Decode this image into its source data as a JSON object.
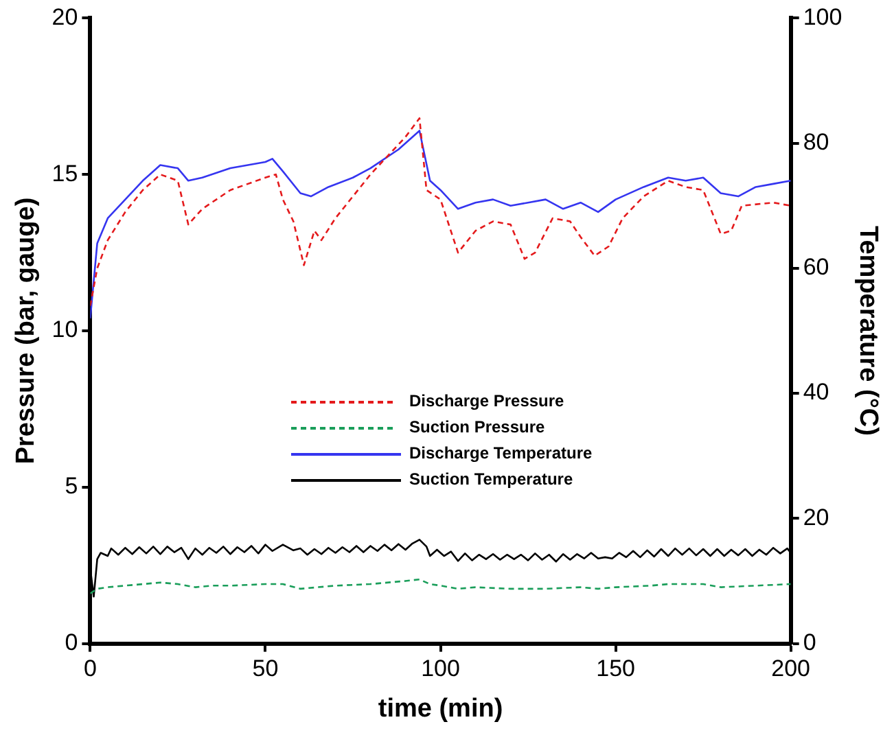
{
  "chart_data": {
    "type": "line",
    "xlabel": "time (min)",
    "ylabel": "Pressure (bar, gauge)",
    "y2label": "Temperature (°C)",
    "xlim": [
      0,
      200
    ],
    "xticks": [
      0,
      50,
      100,
      150,
      200
    ],
    "ylim": [
      0,
      20
    ],
    "yticks": [
      0,
      5,
      10,
      15,
      20
    ],
    "y2lim": [
      0,
      100
    ],
    "y2ticks": [
      0,
      20,
      40,
      60,
      80,
      100
    ],
    "legend": "center",
    "grid": false,
    "marker": "none",
    "series": [
      {
        "name": "Discharge Pressure",
        "color": "#e41a1c",
        "line_style": "dashed",
        "axis": "y",
        "x": [
          0,
          2,
          5,
          10,
          15,
          20,
          25,
          28,
          32,
          40,
          50,
          53,
          55,
          58,
          61,
          64,
          66,
          70,
          80,
          90,
          94,
          96,
          100,
          105,
          110,
          115,
          120,
          124,
          127,
          132,
          137,
          140,
          144,
          148,
          152,
          158,
          165,
          170,
          175,
          180,
          183,
          186,
          195,
          200
        ],
        "values": [
          10.8,
          12.0,
          12.9,
          13.8,
          14.5,
          15.0,
          14.8,
          13.4,
          13.9,
          14.5,
          14.9,
          15.0,
          14.2,
          13.5,
          12.1,
          13.2,
          12.9,
          13.6,
          15.0,
          16.2,
          16.8,
          14.5,
          14.2,
          12.5,
          13.2,
          13.5,
          13.4,
          12.3,
          12.5,
          13.6,
          13.5,
          13.0,
          12.4,
          12.7,
          13.6,
          14.3,
          14.8,
          14.6,
          14.5,
          13.1,
          13.2,
          14.0,
          14.1,
          14.0
        ]
      },
      {
        "name": "Suction Pressure",
        "color": "#1a9e5a",
        "line_style": "dashed",
        "axis": "y",
        "x": [
          0,
          2,
          5,
          10,
          15,
          20,
          25,
          30,
          35,
          40,
          50,
          55,
          60,
          65,
          70,
          80,
          90,
          94,
          97,
          100,
          105,
          110,
          120,
          130,
          140,
          145,
          150,
          160,
          165,
          175,
          180,
          190,
          200
        ],
        "values": [
          1.6,
          1.75,
          1.8,
          1.85,
          1.9,
          1.95,
          1.9,
          1.8,
          1.85,
          1.85,
          1.9,
          1.9,
          1.75,
          1.8,
          1.85,
          1.9,
          2.0,
          2.05,
          1.9,
          1.85,
          1.75,
          1.8,
          1.75,
          1.75,
          1.8,
          1.75,
          1.8,
          1.85,
          1.9,
          1.9,
          1.8,
          1.85,
          1.9
        ]
      },
      {
        "name": "Discharge Temperature",
        "color": "#3535f0",
        "line_style": "solid",
        "axis": "y2",
        "x": [
          0,
          1,
          2,
          5,
          10,
          15,
          20,
          25,
          28,
          32,
          40,
          50,
          52,
          55,
          60,
          63,
          68,
          75,
          80,
          88,
          94,
          97,
          100,
          105,
          110,
          115,
          120,
          125,
          130,
          135,
          140,
          145,
          150,
          158,
          165,
          170,
          175,
          180,
          185,
          190,
          195,
          200
        ],
        "values": [
          52,
          58,
          64,
          68,
          71,
          74,
          76.5,
          76,
          74,
          74.5,
          76,
          77,
          77.5,
          75.5,
          72,
          71.5,
          73,
          74.5,
          76,
          79,
          82,
          74,
          72.5,
          69.5,
          70.5,
          71,
          70,
          70.5,
          71,
          69.5,
          70.5,
          69,
          71,
          73,
          74.5,
          74,
          74.5,
          72,
          71.5,
          73,
          73.5,
          74
        ]
      },
      {
        "name": "Suction Temperature",
        "color": "#000000",
        "line_style": "solid",
        "axis": "y2",
        "x": [
          0,
          1,
          2,
          3,
          5,
          6,
          8,
          10,
          12,
          14,
          16,
          18,
          20,
          22,
          24,
          26,
          28,
          30,
          32,
          34,
          36,
          38,
          40,
          42,
          44,
          46,
          48,
          50,
          52,
          55,
          58,
          60,
          62,
          64,
          66,
          68,
          70,
          72,
          74,
          76,
          78,
          80,
          82,
          84,
          86,
          88,
          90,
          92,
          94,
          96,
          97,
          99,
          101,
          103,
          105,
          107,
          109,
          111,
          113,
          115,
          117,
          119,
          121,
          123,
          125,
          127,
          129,
          131,
          133,
          135,
          137,
          139,
          141,
          143,
          145,
          147,
          149,
          151,
          153,
          155,
          157,
          159,
          161,
          163,
          165,
          167,
          169,
          171,
          173,
          175,
          177,
          179,
          181,
          183,
          185,
          187,
          189,
          191,
          193,
          195,
          197,
          199,
          200
        ],
        "values": [
          12,
          7.5,
          13.5,
          14.5,
          14,
          15.2,
          14.2,
          15.3,
          14.3,
          15.4,
          14.4,
          15.5,
          14.3,
          15.5,
          14.6,
          15.3,
          13.5,
          15.2,
          14.2,
          15.3,
          14.5,
          15.5,
          14.3,
          15.4,
          14.6,
          15.6,
          14.4,
          15.8,
          14.8,
          15.8,
          14.9,
          15.2,
          14.2,
          15.1,
          14.3,
          15.3,
          14.5,
          15.4,
          14.6,
          15.6,
          14.6,
          15.6,
          14.8,
          15.8,
          14.9,
          15.9,
          15.0,
          16.0,
          16.6,
          15.5,
          14.0,
          15.0,
          14.0,
          14.7,
          13.2,
          14.4,
          13.3,
          14.2,
          13.5,
          14.3,
          13.4,
          14.2,
          13.5,
          14.2,
          13.3,
          14.4,
          13.4,
          14.2,
          13.1,
          14.3,
          13.4,
          14.3,
          13.6,
          14.5,
          13.6,
          13.8,
          13.6,
          14.5,
          13.8,
          14.8,
          13.8,
          14.9,
          13.9,
          15.1,
          14.0,
          15.2,
          14.2,
          15.2,
          14.1,
          15.1,
          14.0,
          15.1,
          14.0,
          15.0,
          14.1,
          15.1,
          14.0,
          15.0,
          14.2,
          15.3,
          14.4,
          15.2,
          14.5
        ]
      }
    ]
  }
}
